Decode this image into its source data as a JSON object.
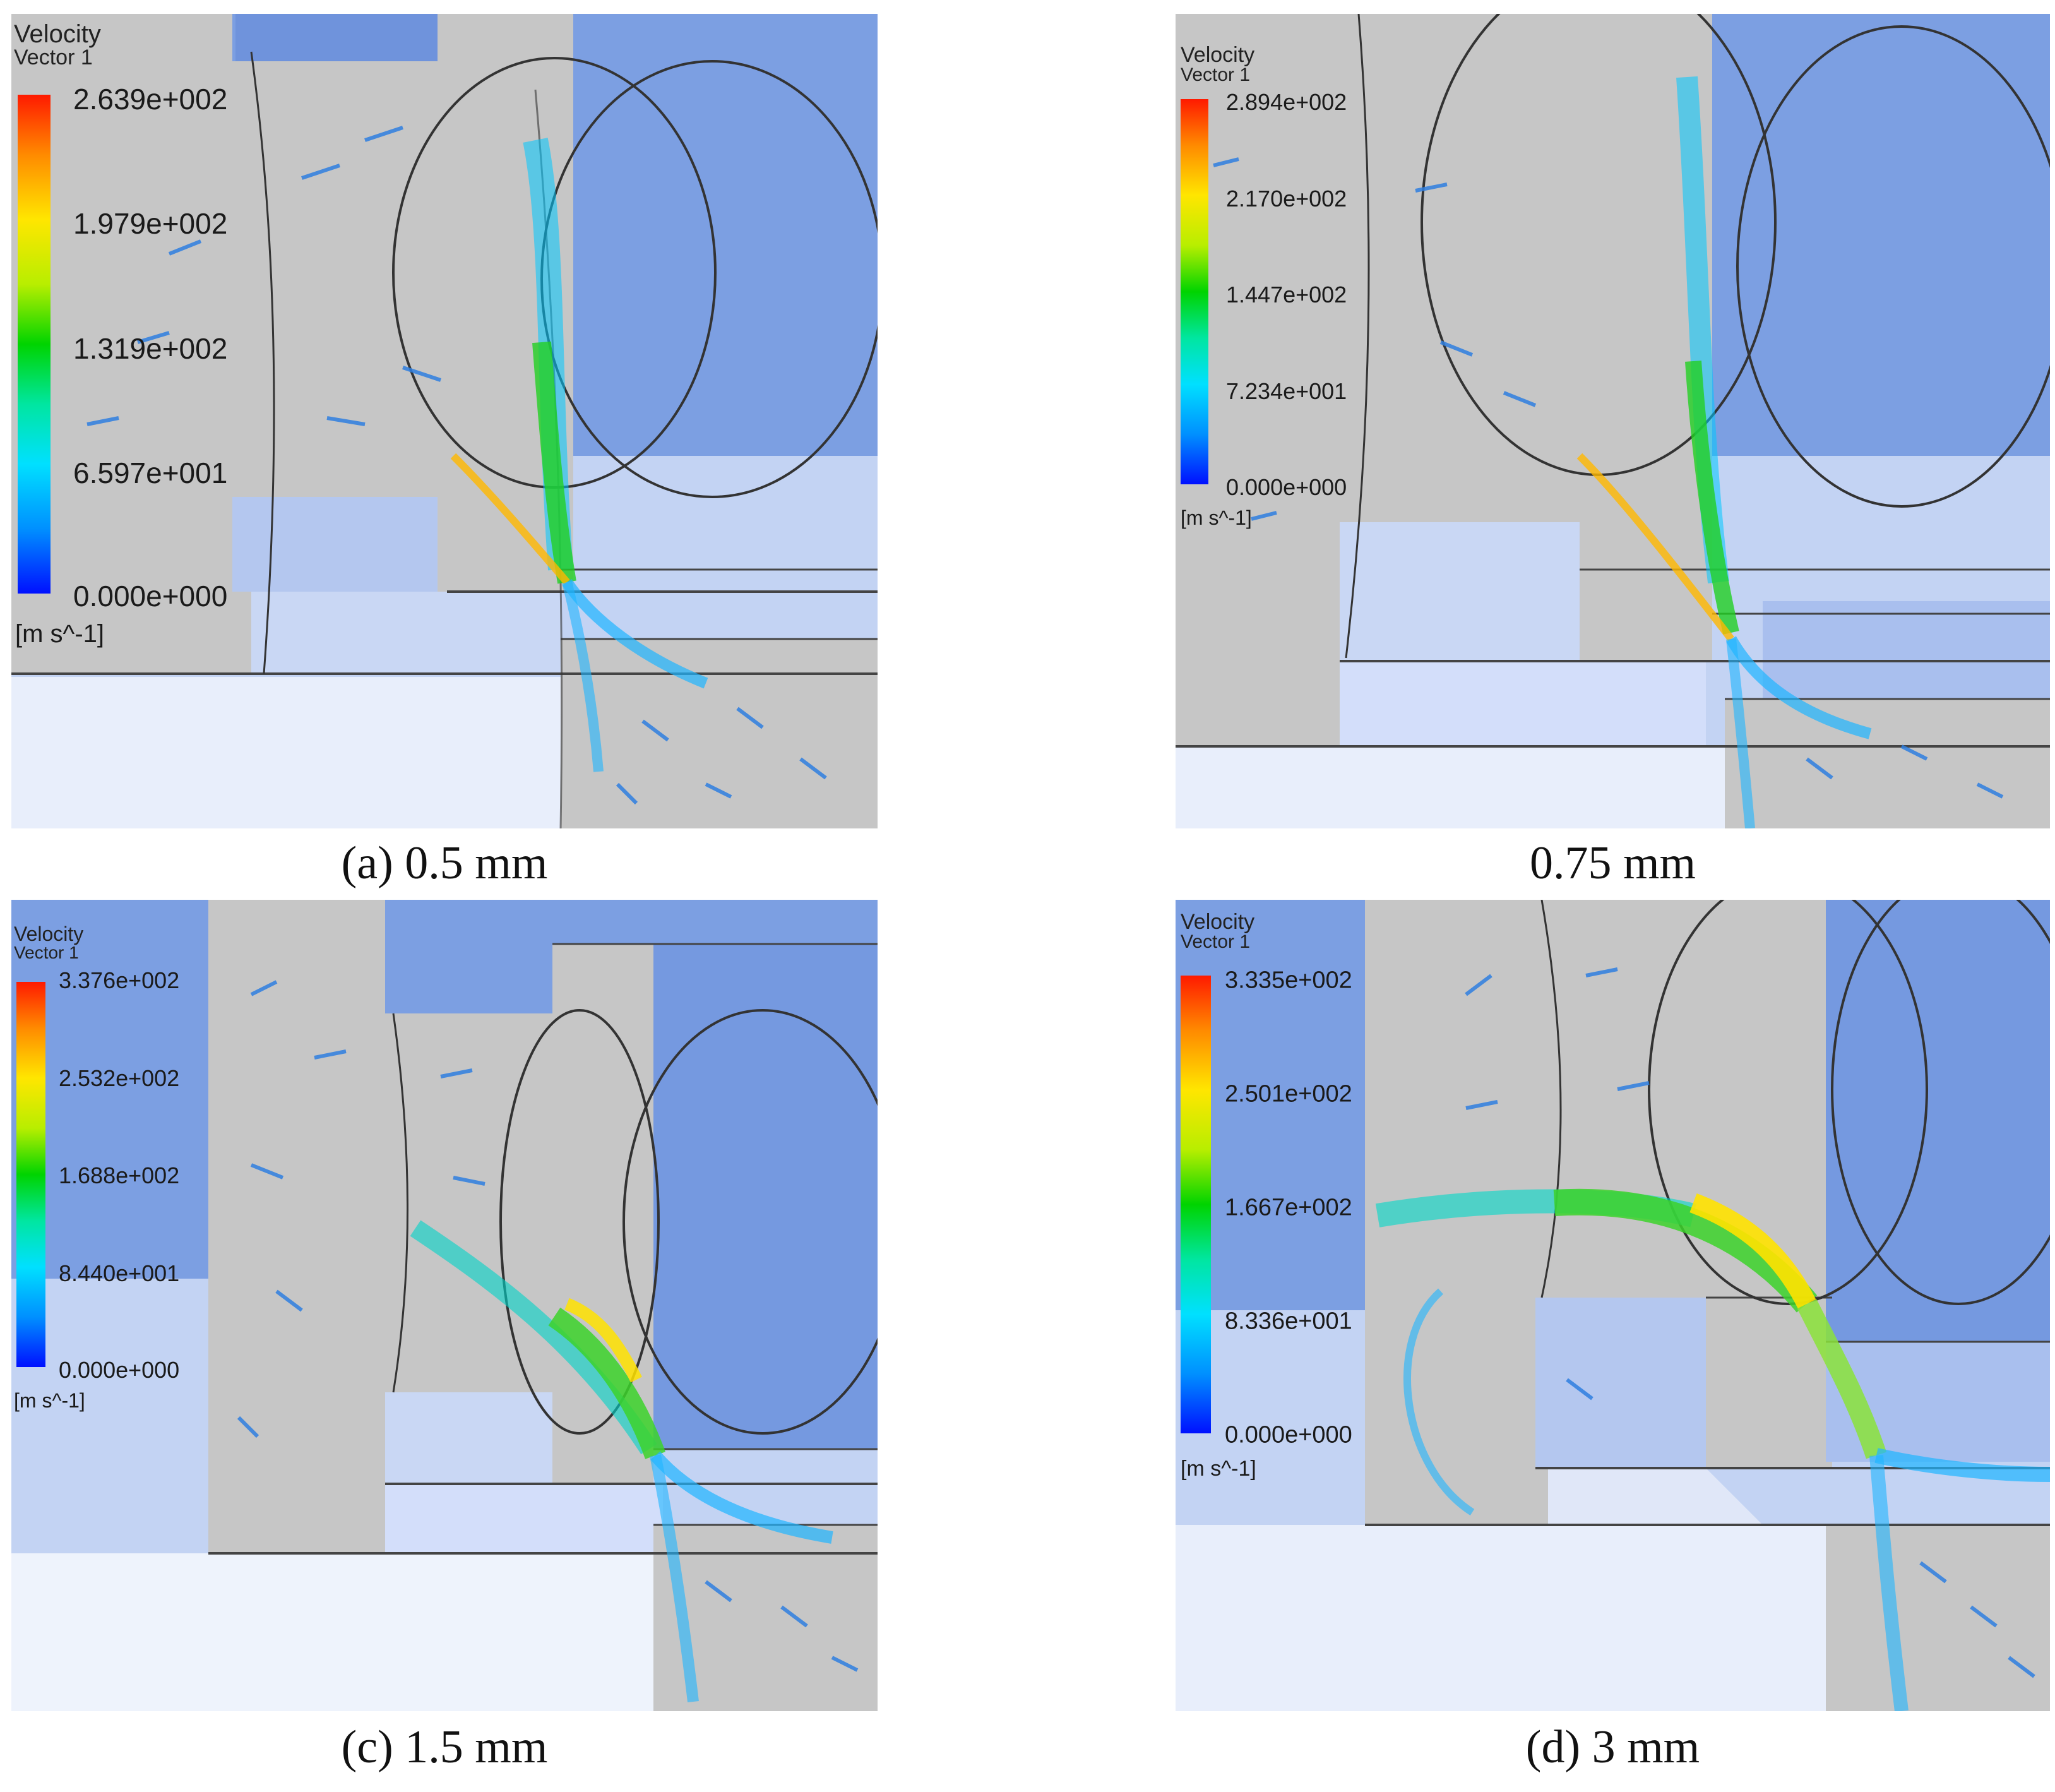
{
  "panels": [
    {
      "legend": {
        "title_line1": "Velocity",
        "title_line2": "Vector 1",
        "ticks": [
          "2.639e+002",
          "1.979e+002",
          "1.319e+002",
          "6.597e+001",
          "0.000e+000"
        ],
        "units": "[m s^-1]"
      },
      "caption": "(a) 0.5 mm"
    },
    {
      "legend": {
        "title_line1": "Velocity",
        "title_line2": "Vector 1",
        "ticks": [
          "2.894e+002",
          "2.170e+002",
          "1.447e+002",
          "7.234e+001",
          "0.000e+000"
        ],
        "units": "[m s^-1]"
      },
      "caption": "0.75 mm"
    },
    {
      "legend": {
        "title_line1": "Velocity",
        "title_line2": "Vector 1",
        "ticks": [
          "3.376e+002",
          "2.532e+002",
          "1.688e+002",
          "8.440e+001",
          "0.000e+000"
        ],
        "units": "[m s^-1]"
      },
      "caption": "(c) 1.5 mm"
    },
    {
      "legend": {
        "title_line1": "Velocity",
        "title_line2": "Vector 1",
        "ticks": [
          "3.335e+002",
          "2.501e+002",
          "1.667e+002",
          "8.336e+001",
          "0.000e+000"
        ],
        "units": "[m s^-1]"
      },
      "caption": "(d) 3 mm"
    }
  ]
}
